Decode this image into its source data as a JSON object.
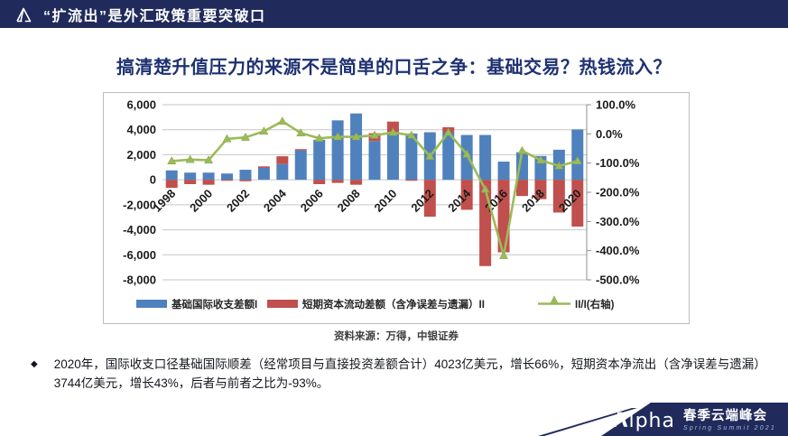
{
  "header": {
    "title": "“扩流出”是外汇政策重要突破口"
  },
  "slide": {
    "title": "搞清楚升值压力的来源不是简单的口舌之争：基础交易？热钱流入？"
  },
  "chart_data": {
    "type": "bar+line combo, stacked bars, dual axis",
    "title": "",
    "categories": [
      1998,
      1999,
      2000,
      2001,
      2002,
      2003,
      2004,
      2005,
      2006,
      2007,
      2008,
      2009,
      2010,
      2011,
      2012,
      2013,
      2014,
      2015,
      2016,
      2017,
      2018,
      2019,
      2020
    ],
    "series": [
      {
        "name": "基础国际收支差额I",
        "type": "bar",
        "axis": "left",
        "color": "#4f81bd",
        "values": [
          750,
          570,
          570,
          500,
          800,
          950,
          1250,
          2350,
          3200,
          4750,
          5300,
          3100,
          3800,
          3700,
          3800,
          3800,
          3580,
          3580,
          1450,
          2200,
          1900,
          2400,
          4023
        ]
      },
      {
        "name": "短期资本流动差额（含净误差与遗漏）II",
        "type": "bar",
        "axis": "left",
        "color": "#c0504d",
        "values": [
          -650,
          -350,
          -400,
          -80,
          -120,
          120,
          630,
          100,
          -350,
          -250,
          -400,
          620,
          850,
          -80,
          -2950,
          400,
          -2400,
          -6900,
          -5800,
          -1300,
          -1550,
          -2620,
          -3744
        ]
      },
      {
        "name": "II/I(右轴)",
        "type": "line",
        "axis": "right",
        "color": "#9bbb59",
        "marker": "triangle-up",
        "values": [
          -93,
          -88,
          -90,
          -17,
          -12,
          9,
          43,
          3,
          -15,
          -10,
          -10,
          -5,
          5,
          -5,
          -77,
          5,
          -70,
          -190,
          -417,
          -58,
          -90,
          -110,
          -93
        ]
      }
    ],
    "left_axis": {
      "min": -8000,
      "max": 6000,
      "step": 2000,
      "tick_labels": [
        "6,000",
        "4,000",
        "2,000",
        "0",
        "-2,000",
        "-4,000",
        "-6,000",
        "-8,000"
      ]
    },
    "right_axis": {
      "min": -500,
      "max": 100,
      "step": 100,
      "tick_labels": [
        "100.0%",
        "0.0%",
        "-100.0%",
        "-200.0%",
        "-300.0%",
        "-400.0%",
        "-500.0%"
      ]
    },
    "x_tick_labels": [
      "1998",
      "2000",
      "2002",
      "2004",
      "2006",
      "2008",
      "2010",
      "2012",
      "2014",
      "2016",
      "2018",
      "2020"
    ],
    "grid": true,
    "legend_position": "bottom",
    "unit_note": "亿美元 (left axis), % (right axis)"
  },
  "source": {
    "label": "资料来源：万得，中银证券"
  },
  "bullet": {
    "marker": "◆",
    "text": "2020年，国际收支口径基础国际顺差（经常项目与直接投资差额合计）4023亿美元，增长66%，短期资本净流出（含净误差与遗漏）3744亿美元，增长43%，后者与前者之比为-93%。"
  },
  "footer": {
    "brand_mark": "Λ",
    "brand_rest": "lpha",
    "event": "春季云端峰会",
    "event_sub": "Spring Summit 2021"
  },
  "colors": {
    "header_bg": "#202b5b",
    "title_text": "#1e3272",
    "bar_basic": "#4f81bd",
    "bar_shortterm": "#c0504d",
    "ratio_line": "#9bbb59",
    "gridline": "#c6c6c6",
    "axis_text": "#1a1a1a"
  }
}
